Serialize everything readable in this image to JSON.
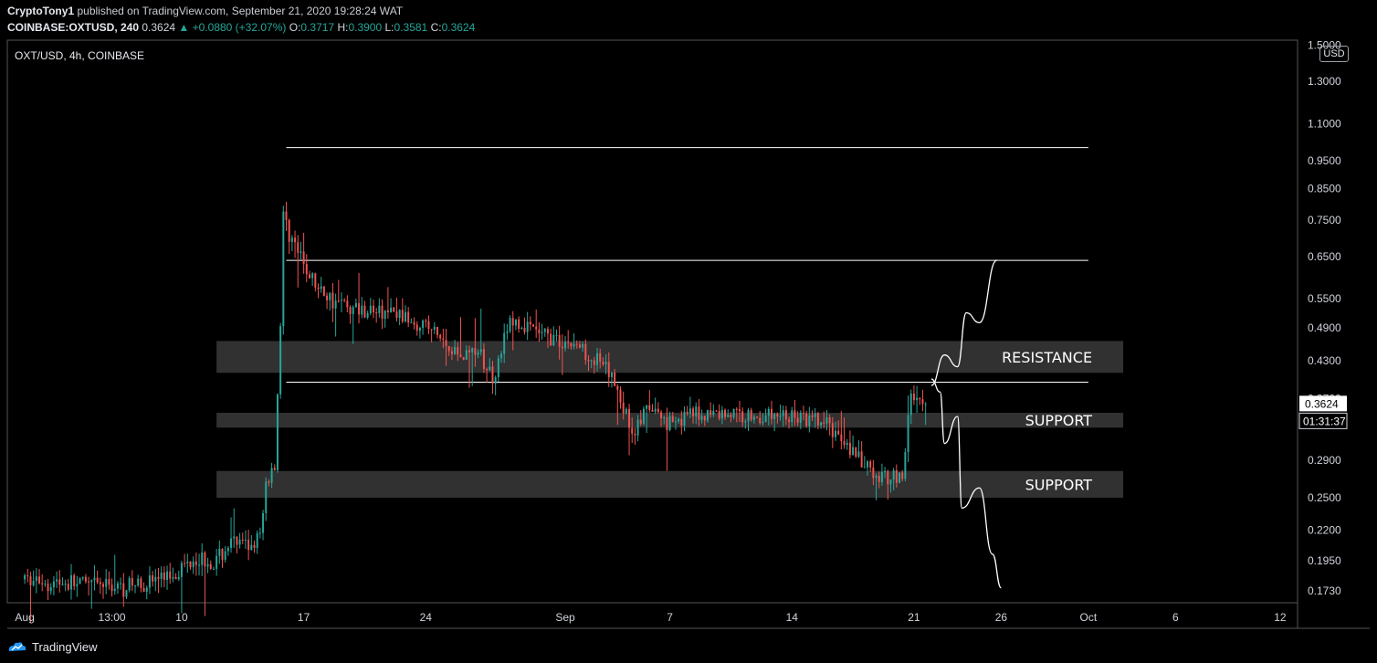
{
  "header": {
    "publisher": "CryptoTony1",
    "published_text": "published on TradingView.com, September 21, 2020 19:28:24 WAT",
    "symbol": "COINBASE:OXTUSD, 240",
    "last": "0.3624",
    "change": "▲ +0.0880 (+32.07%)",
    "o_label": "O:",
    "o": "0.3717",
    "h_label": "H:",
    "h": "0.3900",
    "l_label": "L:",
    "l": "0.3581",
    "c_label": "C:",
    "c": "0.3624"
  },
  "legend": "OXT/USD, 4h, COINBASE",
  "currency_button": "USD",
  "price_tag": "0.3624",
  "countdown_tag": "01:31:37",
  "footer": {
    "brand": "TradingView"
  },
  "colors": {
    "up": "#26a69a",
    "down": "#ef5350",
    "zone": "#3a3a3a",
    "background": "#000000"
  },
  "chart_data": {
    "type": "candlestick",
    "y_scale": "log",
    "ylim": [
      0.165,
      1.53
    ],
    "xlim": [
      "2020-07-31",
      "2020-10-13"
    ],
    "y_ticks": [
      "1.5000",
      "1.3000",
      "1.1000",
      "0.9500",
      "0.8500",
      "0.7500",
      "0.6500",
      "0.5500",
      "0.4900",
      "0.4300",
      "0.3700",
      "0.2900",
      "0.2500",
      "0.2200",
      "0.1950",
      "0.1730"
    ],
    "x_ticks": [
      {
        "label": "Aug",
        "date": "2020-08-01"
      },
      {
        "label": "13:00",
        "date": "2020-08-06"
      },
      {
        "label": "10",
        "date": "2020-08-10"
      },
      {
        "label": "17",
        "date": "2020-08-17"
      },
      {
        "label": "24",
        "date": "2020-08-24"
      },
      {
        "label": "Sep",
        "date": "2020-09-01"
      },
      {
        "label": "7",
        "date": "2020-09-07"
      },
      {
        "label": "14",
        "date": "2020-09-14"
      },
      {
        "label": "21",
        "date": "2020-09-21"
      },
      {
        "label": "26",
        "date": "2020-09-26"
      },
      {
        "label": "Oct",
        "date": "2020-10-01"
      },
      {
        "label": "6",
        "date": "2020-10-06"
      },
      {
        "label": "12",
        "date": "2020-10-12"
      }
    ],
    "price_path": [
      [
        "2020-08-01",
        0.181
      ],
      [
        "2020-08-03",
        0.179
      ],
      [
        "2020-08-05",
        0.177
      ],
      [
        "2020-08-07",
        0.176
      ],
      [
        "2020-08-08",
        0.179
      ],
      [
        "2020-08-09",
        0.182
      ],
      [
        "2020-08-10",
        0.188
      ],
      [
        "2020-08-11",
        0.199
      ],
      [
        "2020-08-12",
        0.192
      ],
      [
        "2020-08-13",
        0.21
      ],
      [
        "2020-08-14",
        0.206
      ],
      [
        "2020-08-14T18:00",
        0.215
      ],
      [
        "2020-08-15",
        0.265
      ],
      [
        "2020-08-15T12:00",
        0.285
      ],
      [
        "2020-08-15T20:00",
        0.5
      ],
      [
        "2020-08-16",
        0.76
      ],
      [
        "2020-08-17",
        0.64
      ],
      [
        "2020-08-18",
        0.57
      ],
      [
        "2020-08-19",
        0.545
      ],
      [
        "2020-08-20",
        0.53
      ],
      [
        "2020-08-22",
        0.52
      ],
      [
        "2020-08-24",
        0.5
      ],
      [
        "2020-08-25",
        0.47
      ],
      [
        "2020-08-26",
        0.44
      ],
      [
        "2020-08-27",
        0.45
      ],
      [
        "2020-08-28",
        0.405
      ],
      [
        "2020-08-29",
        0.5
      ],
      [
        "2020-08-31",
        0.475
      ],
      [
        "2020-09-02",
        0.455
      ],
      [
        "2020-09-03",
        0.43
      ],
      [
        "2020-09-04",
        0.395
      ],
      [
        "2020-09-05",
        0.325
      ],
      [
        "2020-09-06",
        0.355
      ],
      [
        "2020-09-07",
        0.34
      ],
      [
        "2020-09-08",
        0.345
      ],
      [
        "2020-09-10",
        0.35
      ],
      [
        "2020-09-12",
        0.345
      ],
      [
        "2020-09-14",
        0.345
      ],
      [
        "2020-09-16",
        0.335
      ],
      [
        "2020-09-17",
        0.32
      ],
      [
        "2020-09-18",
        0.29
      ],
      [
        "2020-09-19",
        0.27
      ],
      [
        "2020-09-20",
        0.275
      ],
      [
        "2020-09-20T12:00",
        0.27
      ],
      [
        "2020-09-21",
        0.38
      ],
      [
        "2020-09-21T16:00",
        0.3624
      ]
    ],
    "horizontal_lines": [
      {
        "price": 1.0,
        "from": "2020-08-16",
        "to": "2020-10-01"
      },
      {
        "price": 0.64,
        "from": "2020-08-16",
        "to": "2020-10-01"
      },
      {
        "price": 0.395,
        "from": "2020-08-16",
        "to": "2020-10-01"
      }
    ],
    "zones": [
      {
        "label": "RESISTANCE",
        "low": 0.41,
        "high": 0.465,
        "from": "2020-08-12",
        "to": "2020-10-03"
      },
      {
        "label": "SUPPORT",
        "low": 0.33,
        "high": 0.35,
        "from": "2020-08-12",
        "to": "2020-10-03"
      },
      {
        "label": "SUPPORT",
        "low": 0.25,
        "high": 0.278,
        "from": "2020-08-12",
        "to": "2020-10-03"
      }
    ],
    "projections": [
      [
        [
          "2020-09-22",
          0.39
        ],
        [
          "2020-09-22T18:00",
          0.44
        ],
        [
          "2020-09-23T12:00",
          0.42
        ],
        [
          "2020-09-24",
          0.52
        ],
        [
          "2020-09-24T18:00",
          0.5
        ],
        [
          "2020-09-25T18:00",
          0.64
        ]
      ],
      [
        [
          "2020-09-22",
          0.4
        ],
        [
          "2020-09-22T12:00",
          0.38
        ],
        [
          "2020-09-22T18:00",
          0.31
        ],
        [
          "2020-09-23T12:00",
          0.345
        ],
        [
          "2020-09-23T18:00",
          0.24
        ],
        [
          "2020-09-24T18:00",
          0.26
        ],
        [
          "2020-09-25T12:00",
          0.2
        ],
        [
          "2020-09-26",
          0.175
        ]
      ]
    ]
  }
}
